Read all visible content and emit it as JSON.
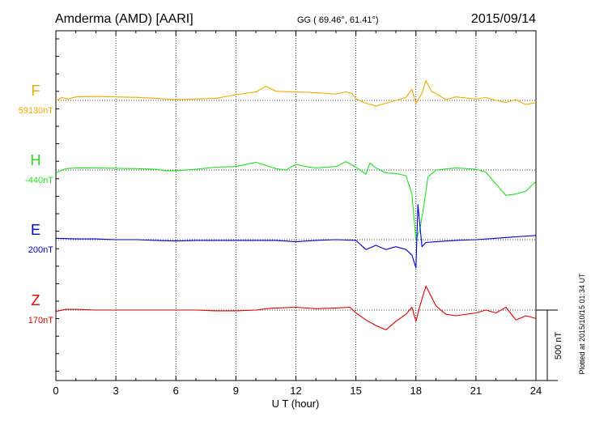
{
  "header": {
    "station": "Amderma (AMD)  [AARI]",
    "coords": "GG ( 69.46°,  61.41°)",
    "date": "2015/09/14"
  },
  "side_note": "Plotted at 2015/10/15 01:34 UT",
  "scale_label": "500 nT",
  "chart_data": {
    "type": "line",
    "xlabel": "U T (hour)",
    "xlim": [
      0,
      24
    ],
    "x_ticks": [
      "0",
      "3",
      "6",
      "9",
      "12",
      "15",
      "18",
      "21",
      "24"
    ],
    "scale_bar_nT": 500,
    "grid": true,
    "series": [
      {
        "name": "F",
        "baseline_label": "59130nT",
        "baseline_nT": 59130,
        "color": "#f0aa00",
        "points": [
          [
            0,
            0
          ],
          [
            0.3,
            20
          ],
          [
            0.6,
            10
          ],
          [
            1,
            25
          ],
          [
            2,
            28
          ],
          [
            3,
            25
          ],
          [
            4,
            22
          ],
          [
            5,
            15
          ],
          [
            6,
            5
          ],
          [
            7,
            10
          ],
          [
            8,
            15
          ],
          [
            9,
            40
          ],
          [
            10,
            60
          ],
          [
            10.5,
            100
          ],
          [
            11,
            65
          ],
          [
            12,
            60
          ],
          [
            13,
            55
          ],
          [
            14,
            45
          ],
          [
            14.5,
            60
          ],
          [
            14.8,
            50
          ],
          [
            15,
            10
          ],
          [
            15.5,
            -20
          ],
          [
            16,
            -40
          ],
          [
            16.5,
            -20
          ],
          [
            17,
            0
          ],
          [
            17.5,
            20
          ],
          [
            17.8,
            80
          ],
          [
            18,
            -20
          ],
          [
            18.3,
            50
          ],
          [
            18.5,
            140
          ],
          [
            18.8,
            60
          ],
          [
            19,
            50
          ],
          [
            19.5,
            5
          ],
          [
            20,
            25
          ],
          [
            21,
            10
          ],
          [
            21.5,
            20
          ],
          [
            22,
            0
          ],
          [
            22.5,
            -15
          ],
          [
            23,
            5
          ],
          [
            23.5,
            -30
          ],
          [
            24,
            -15
          ]
        ]
      },
      {
        "name": "H",
        "baseline_label": "-440nT",
        "baseline_nT": -440,
        "color": "#22dd22",
        "points": [
          [
            0,
            -20
          ],
          [
            0.5,
            10
          ],
          [
            1,
            15
          ],
          [
            2,
            15
          ],
          [
            3,
            12
          ],
          [
            4,
            10
          ],
          [
            5,
            5
          ],
          [
            5.5,
            -5
          ],
          [
            6,
            -5
          ],
          [
            7,
            5
          ],
          [
            8,
            20
          ],
          [
            9,
            25
          ],
          [
            10,
            55
          ],
          [
            11,
            10
          ],
          [
            11.5,
            0
          ],
          [
            12,
            40
          ],
          [
            12.5,
            25
          ],
          [
            13,
            15
          ],
          [
            14,
            25
          ],
          [
            14.5,
            60
          ],
          [
            15,
            20
          ],
          [
            15.5,
            -30
          ],
          [
            15.7,
            50
          ],
          [
            16,
            15
          ],
          [
            16.5,
            -20
          ],
          [
            17,
            -25
          ],
          [
            17.5,
            -40
          ],
          [
            17.8,
            -170
          ],
          [
            18,
            -500
          ],
          [
            18.2,
            -420
          ],
          [
            18.4,
            -250
          ],
          [
            18.6,
            -50
          ],
          [
            19,
            0
          ],
          [
            20,
            15
          ],
          [
            21,
            5
          ],
          [
            21.5,
            -15
          ],
          [
            22,
            -100
          ],
          [
            22.5,
            -180
          ],
          [
            23,
            -170
          ],
          [
            23.5,
            -150
          ],
          [
            24,
            -80
          ]
        ]
      },
      {
        "name": "E",
        "baseline_label": "200nT",
        "baseline_nT": 200,
        "color": "#0000cc",
        "points": [
          [
            0,
            10
          ],
          [
            1,
            5
          ],
          [
            2,
            5
          ],
          [
            3,
            0
          ],
          [
            4,
            0
          ],
          [
            5,
            -5
          ],
          [
            6,
            -10
          ],
          [
            7,
            -5
          ],
          [
            8,
            -5
          ],
          [
            9,
            -5
          ],
          [
            10,
            -5
          ],
          [
            11,
            -5
          ],
          [
            12,
            -15
          ],
          [
            13,
            -5
          ],
          [
            14,
            0
          ],
          [
            15,
            -5
          ],
          [
            15.5,
            -70
          ],
          [
            16,
            -40
          ],
          [
            16.5,
            -70
          ],
          [
            17,
            -50
          ],
          [
            17.5,
            -70
          ],
          [
            17.8,
            -110
          ],
          [
            18,
            -200
          ],
          [
            18.1,
            250
          ],
          [
            18.3,
            -50
          ],
          [
            18.5,
            -20
          ],
          [
            19,
            -15
          ],
          [
            20,
            -5
          ],
          [
            21,
            0
          ],
          [
            22,
            10
          ],
          [
            23,
            20
          ],
          [
            24,
            30
          ]
        ]
      },
      {
        "name": "Z",
        "baseline_label": "170nT",
        "baseline_nT": 170,
        "color": "#dd0000",
        "points": [
          [
            0,
            -10
          ],
          [
            0.5,
            5
          ],
          [
            1,
            5
          ],
          [
            2,
            0
          ],
          [
            3,
            0
          ],
          [
            4,
            0
          ],
          [
            5,
            0
          ],
          [
            6,
            0
          ],
          [
            7,
            0
          ],
          [
            8,
            -5
          ],
          [
            9,
            -5
          ],
          [
            10,
            0
          ],
          [
            10.5,
            10
          ],
          [
            11,
            15
          ],
          [
            12,
            20
          ],
          [
            13,
            10
          ],
          [
            14,
            15
          ],
          [
            14.7,
            20
          ],
          [
            15,
            -20
          ],
          [
            15.5,
            -70
          ],
          [
            16,
            -110
          ],
          [
            16.5,
            -140
          ],
          [
            17,
            -80
          ],
          [
            17.5,
            -30
          ],
          [
            17.8,
            20
          ],
          [
            18,
            -80
          ],
          [
            18.2,
            30
          ],
          [
            18.5,
            170
          ],
          [
            19,
            30
          ],
          [
            19.5,
            -30
          ],
          [
            20,
            -40
          ],
          [
            21,
            -20
          ],
          [
            21.5,
            0
          ],
          [
            22,
            -20
          ],
          [
            22.5,
            20
          ],
          [
            23,
            -70
          ],
          [
            23.5,
            -40
          ],
          [
            24,
            -60
          ]
        ]
      }
    ]
  }
}
